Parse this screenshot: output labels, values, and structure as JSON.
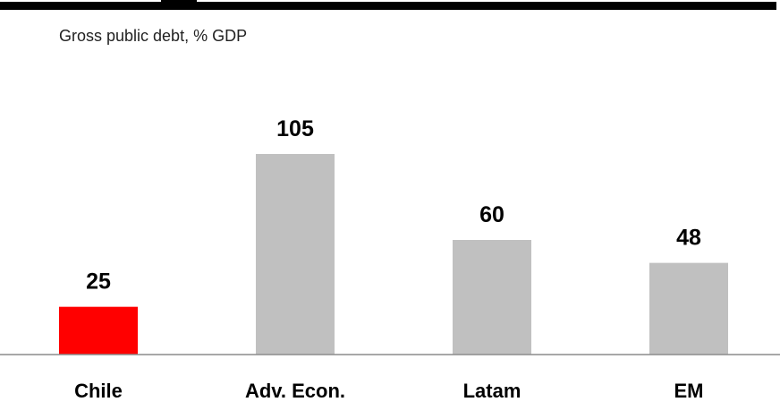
{
  "subtitle": "Gross public debt, % GDP",
  "chart_data": {
    "type": "bar",
    "title": "",
    "subtitle": "Gross public debt, % GDP",
    "categories": [
      "Chile",
      "Adv. Econ.",
      "Latam",
      "EM"
    ],
    "values": [
      25,
      105,
      60,
      48
    ],
    "colors": [
      "#ff0000",
      "#c0c0c0",
      "#c0c0c0",
      "#c0c0c0"
    ],
    "ylim": [
      0,
      105
    ],
    "grid": false,
    "legend": "none",
    "data_labels": true
  }
}
